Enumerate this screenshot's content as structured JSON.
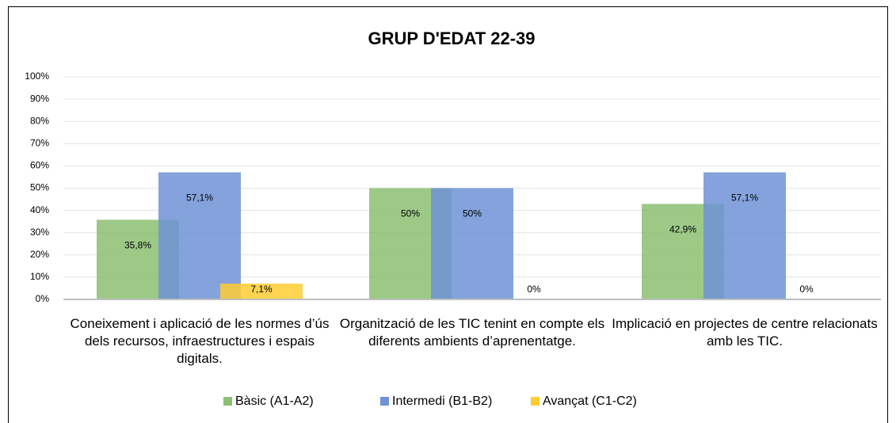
{
  "chart_data": {
    "type": "bar",
    "title": "GRUP D'EDAT 22-39",
    "categories": [
      "Coneixement i aplicació de les normes d’ús dels recursos, infraestructures i espais digitals.",
      "Organització de les TIC tenint en compte els diferents ambients d’aprenentatge.",
      "Implicació en projectes de centre relacionats amb les TIC."
    ],
    "series": [
      {
        "name": "Bàsic (A1-A2)",
        "color": "#8cc072",
        "values": [
          35.8,
          50,
          42.9
        ],
        "value_labels": [
          "35,8%",
          "50%",
          "42,9%"
        ]
      },
      {
        "name": "Intermedi (B1-B2)",
        "color": "#6f93d6",
        "values": [
          57.1,
          50,
          57.1
        ],
        "value_labels": [
          "57,1%",
          "50%",
          "57,1%"
        ]
      },
      {
        "name": "Avançat (C1-C2)",
        "color": "#ffcc33",
        "values": [
          7.1,
          0,
          0
        ],
        "value_labels": [
          "7,1%",
          "0%",
          "0%"
        ]
      }
    ],
    "ylim": [
      0,
      100
    ],
    "yticks": [
      {
        "value": 0,
        "label": "0%"
      },
      {
        "value": 10,
        "label": "10%"
      },
      {
        "value": 20,
        "label": "20%"
      },
      {
        "value": 30,
        "label": "30%"
      },
      {
        "value": 40,
        "label": "40%"
      },
      {
        "value": 50,
        "label": "50%"
      },
      {
        "value": 60,
        "label": "60%"
      },
      {
        "value": 70,
        "label": "70%"
      },
      {
        "value": 80,
        "label": "80%"
      },
      {
        "value": 90,
        "label": "90%"
      },
      {
        "value": 100,
        "label": "100%"
      }
    ],
    "grid": true,
    "legend": "bottom"
  }
}
